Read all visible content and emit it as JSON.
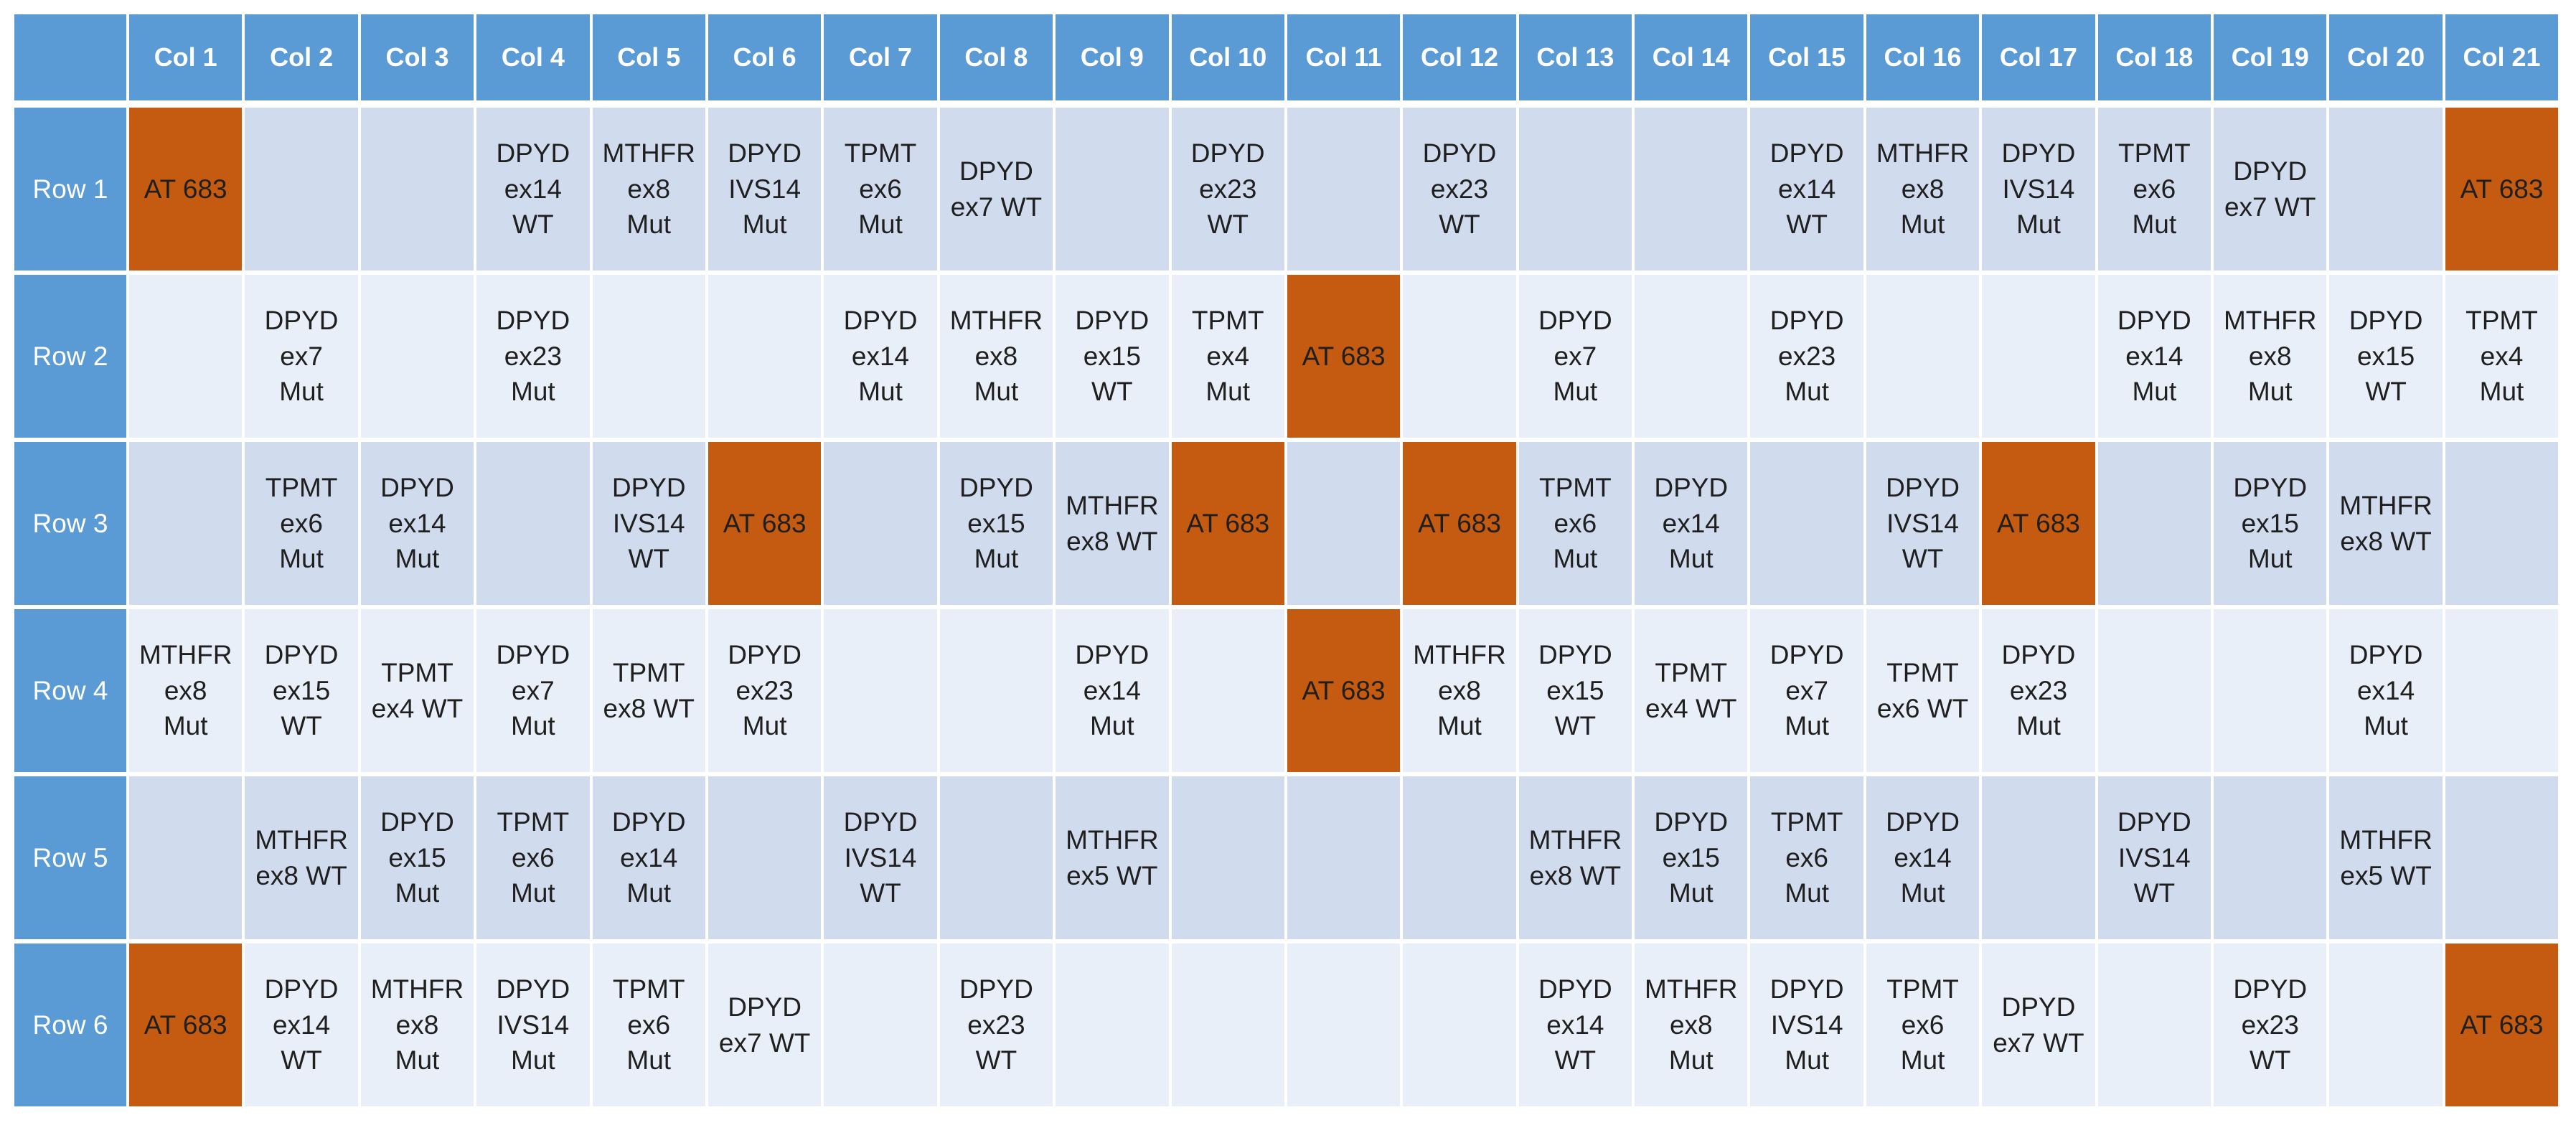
{
  "colors": {
    "header_bg": "#5b9bd5",
    "header_text": "#ffffff",
    "band_dark": "#d0dcee",
    "band_light": "#e9eff8",
    "highlight": "#c55a11"
  },
  "columns": [
    "Col 1",
    "Col 2",
    "Col 3",
    "Col 4",
    "Col 5",
    "Col 6",
    "Col 7",
    "Col 8",
    "Col 9",
    "Col 10",
    "Col 11",
    "Col 12",
    "Col 13",
    "Col 14",
    "Col 15",
    "Col 16",
    "Col 17",
    "Col 18",
    "Col 19",
    "Col 20",
    "Col 21"
  ],
  "rows": [
    {
      "label": "Row 1",
      "cells": [
        "AT 683",
        "",
        "",
        "DPYD\nex14\nWT",
        "MTHFR\nex8\nMut",
        "DPYD\nIVS14\nMut",
        "TPMT\nex6\nMut",
        "DPYD\nex7 WT",
        "",
        "DPYD\nex23\nWT",
        "",
        "DPYD\nex23\nWT",
        "",
        "",
        "DPYD\nex14\nWT",
        "MTHFR\nex8\nMut",
        "DPYD\nIVS14\nMut",
        "TPMT\nex6\nMut",
        "DPYD\nex7 WT",
        "",
        "AT 683"
      ]
    },
    {
      "label": "Row 2",
      "cells": [
        "",
        "DPYD\nex7\nMut",
        "",
        "DPYD\nex23\nMut",
        "",
        "",
        "DPYD\nex14\nMut",
        "MTHFR\nex8\nMut",
        "DPYD\nex15\nWT",
        "TPMT\nex4\nMut",
        "AT 683",
        "",
        "DPYD\nex7\nMut",
        "",
        "DPYD\nex23\nMut",
        "",
        "",
        "DPYD\nex14\nMut",
        "MTHFR\nex8\nMut",
        "DPYD\nex15\nWT",
        "TPMT\nex4\nMut"
      ]
    },
    {
      "label": "Row 3",
      "cells": [
        "",
        "TPMT\nex6\nMut",
        "DPYD\nex14\nMut",
        "",
        "DPYD\nIVS14\nWT",
        "AT 683",
        "",
        "DPYD\nex15\nMut",
        "MTHFR\nex8 WT",
        "AT 683",
        "",
        "AT 683",
        "TPMT\nex6\nMut",
        "DPYD\nex14\nMut",
        "",
        "DPYD\nIVS14\nWT",
        "AT 683",
        "",
        "DPYD\nex15\nMut",
        "MTHFR\nex8 WT",
        ""
      ]
    },
    {
      "label": "Row 4",
      "cells": [
        "MTHFR\nex8\nMut",
        "DPYD\nex15\nWT",
        "TPMT\nex4 WT",
        "DPYD\nex7\nMut",
        "TPMT\nex8 WT",
        "DPYD\nex23\nMut",
        "",
        "",
        "DPYD\nex14\nMut",
        "",
        "AT 683",
        "MTHFR\nex8\nMut",
        "DPYD\nex15\nWT",
        "TPMT\nex4 WT",
        "DPYD\nex7\nMut",
        "TPMT\nex6 WT",
        "DPYD\nex23\nMut",
        "",
        "",
        "DPYD\nex14\nMut",
        ""
      ]
    },
    {
      "label": "Row 5",
      "cells": [
        "",
        "MTHFR\nex8 WT",
        "DPYD\nex15\nMut",
        "TPMT\nex6\nMut",
        "DPYD\nex14\nMut",
        "",
        "DPYD\nIVS14\nWT",
        "",
        "MTHFR\nex5 WT",
        "",
        "",
        "",
        "MTHFR\nex8 WT",
        "DPYD\nex15\nMut",
        "TPMT\nex6\nMut",
        "DPYD\nex14\nMut",
        "",
        "DPYD\nIVS14\nWT",
        "",
        "MTHFR\nex5 WT",
        ""
      ]
    },
    {
      "label": "Row 6",
      "cells": [
        "AT 683",
        "DPYD\nex14\nWT",
        "MTHFR\nex8\nMut",
        "DPYD\nIVS14\nMut",
        "TPMT\nex6\nMut",
        "DPYD\nex7 WT",
        "",
        "DPYD\nex23\nWT",
        "",
        "",
        "",
        "",
        "DPYD\nex14\nWT",
        "MTHFR\nex8\nMut",
        "DPYD\nIVS14\nMut",
        "TPMT\nex6\nMut",
        "DPYD\nex7 WT",
        "",
        "DPYD\nex23\nWT",
        "",
        "AT 683"
      ]
    }
  ]
}
